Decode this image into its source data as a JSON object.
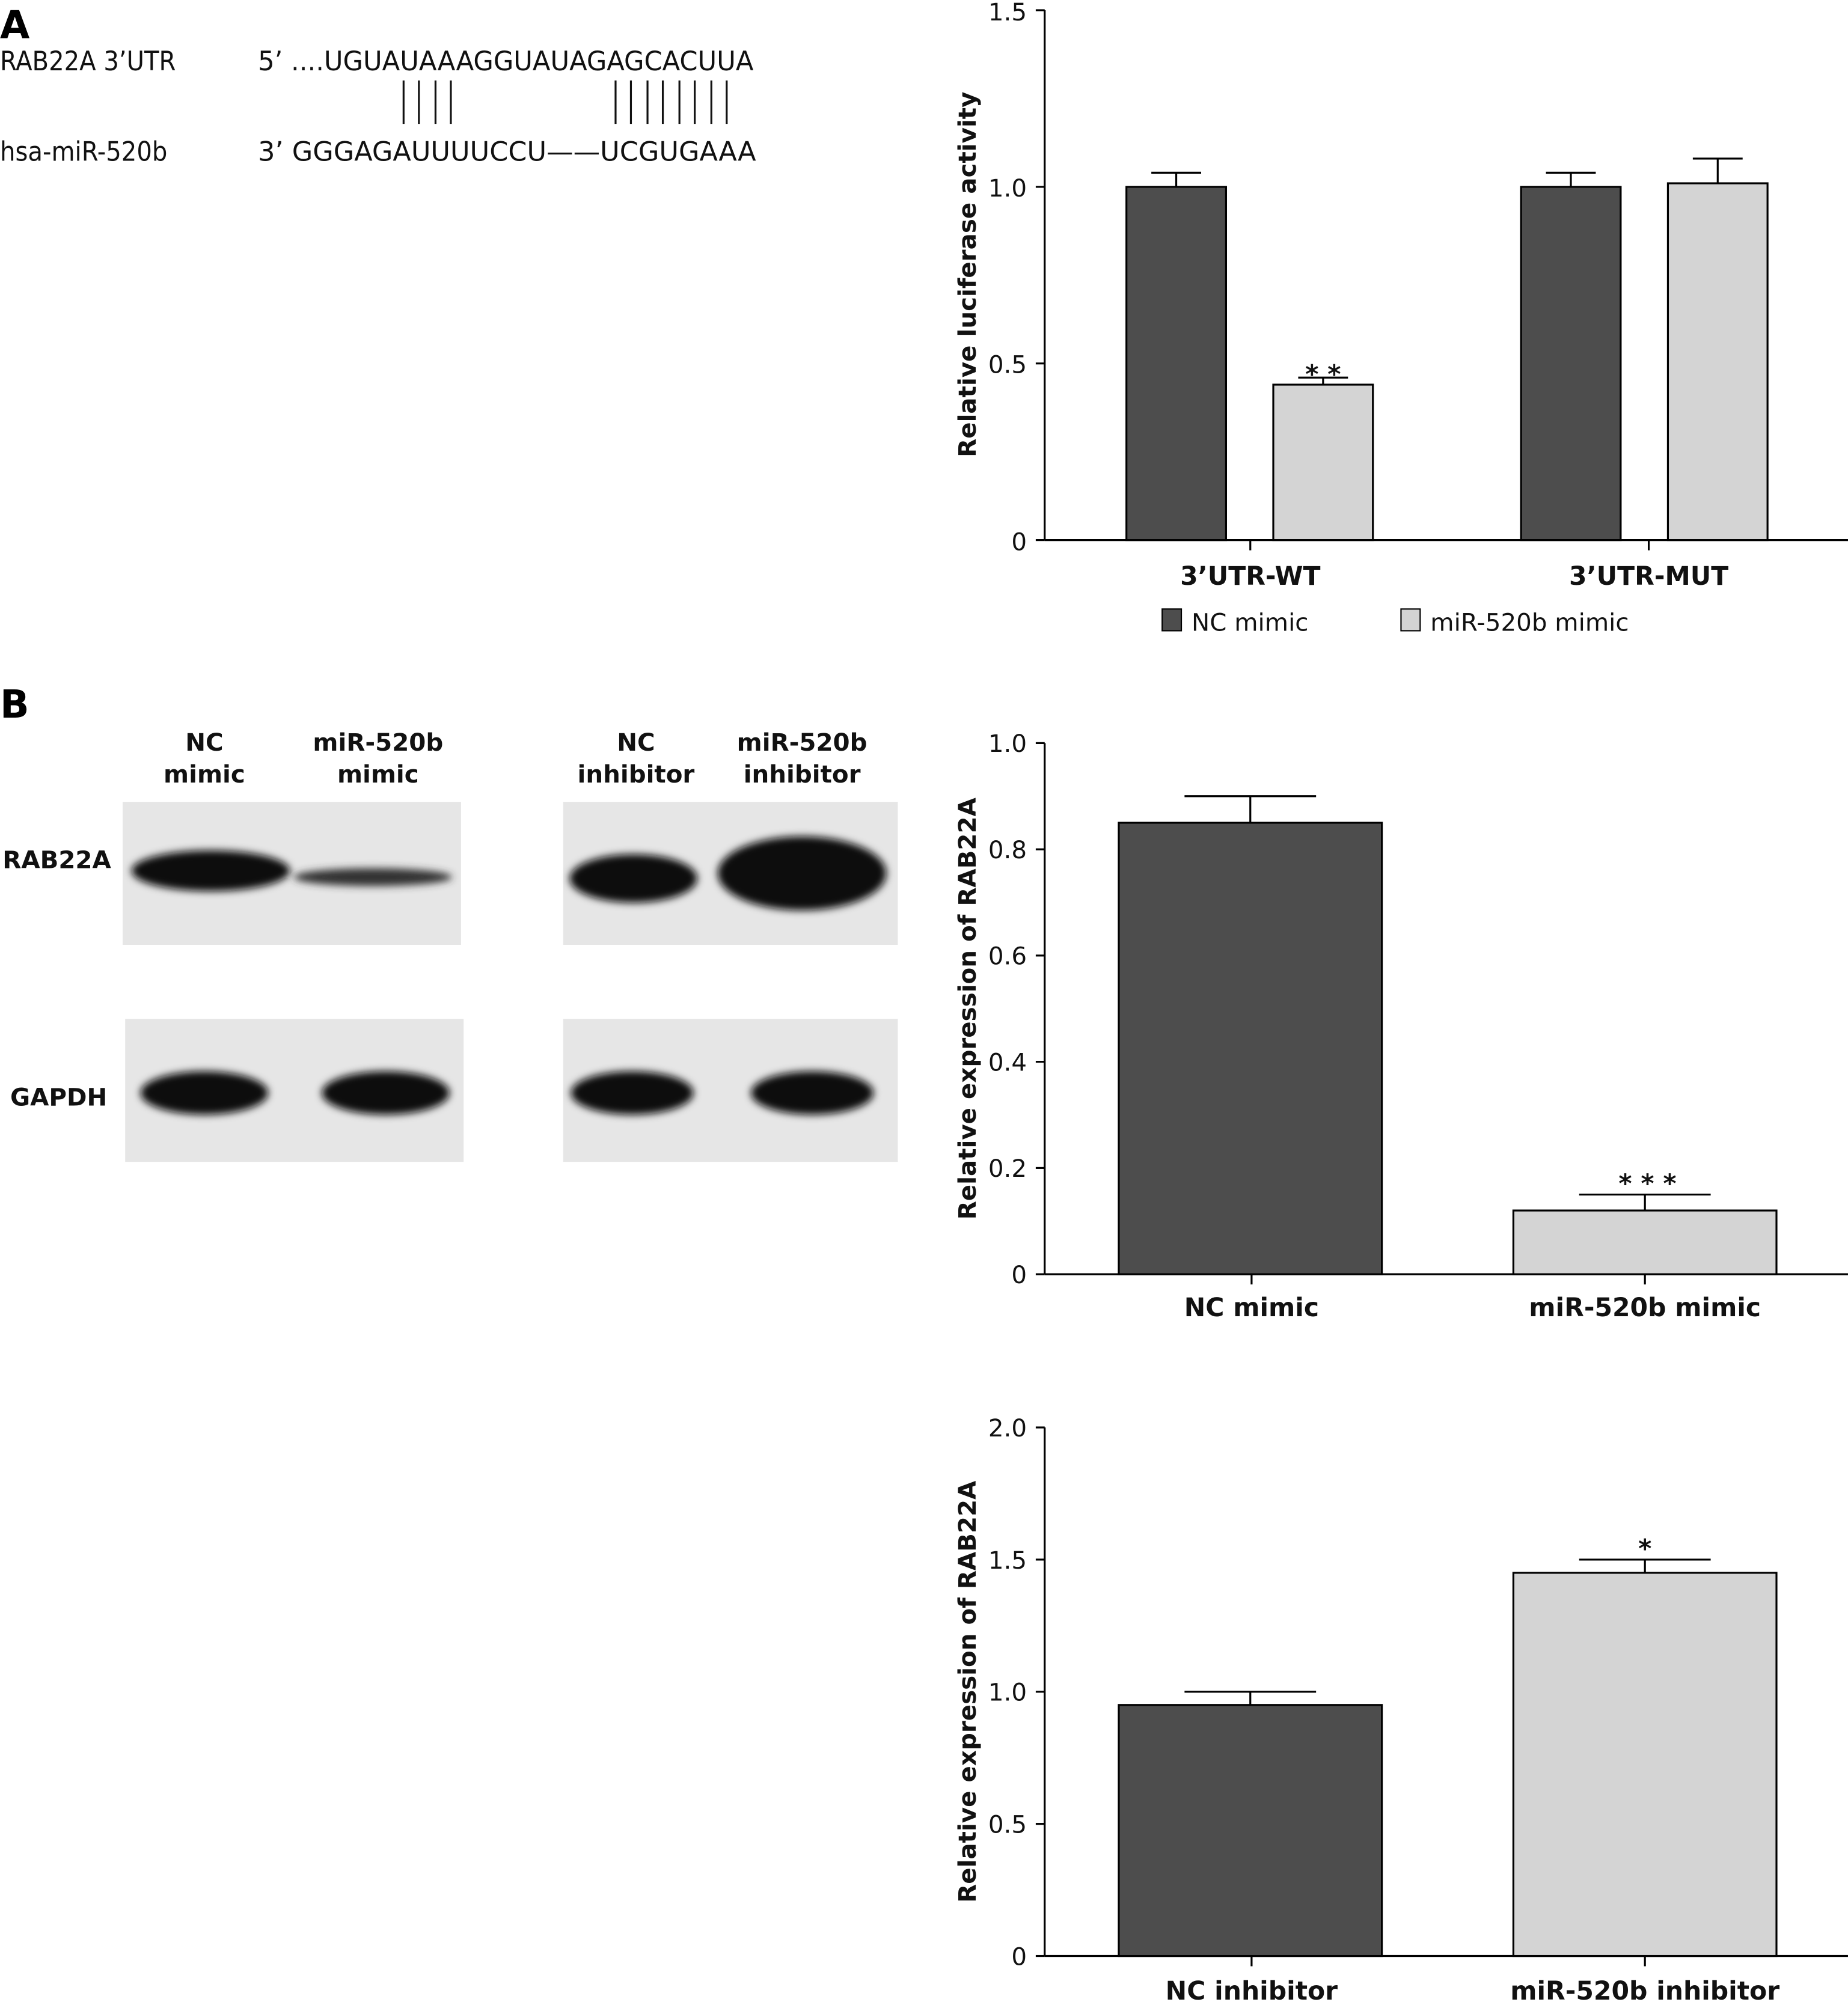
{
  "panels": {
    "a": "A",
    "b": "B"
  },
  "sequence": {
    "utr_label": "RAB22A 3’UTR",
    "utr_seq": "5’ ....UGUAUAAAGGUAUAGAGCACUUA",
    "mir_label": "hsa-miR-520b",
    "mir_seq": "3’ GGGAGAUUUUCCU——UCGUGAAA"
  },
  "blot": {
    "col_labels": [
      [
        "NC",
        "mimic"
      ],
      [
        "miR-520b",
        "mimic"
      ],
      [
        "NC",
        "inhibitor"
      ],
      [
        "miR-520b",
        "inhibitor"
      ]
    ],
    "row_labels": [
      "RAB22A",
      "GAPDH"
    ]
  },
  "colors": {
    "dark": "#4d4d4d",
    "light": "#d4d4d4"
  },
  "chart_data": [
    {
      "type": "bar",
      "title": "",
      "ylabel": "Relative luciferase activity",
      "xlabel": "",
      "ylim": [
        0,
        1.5
      ],
      "yticks": [
        "0",
        "0.5",
        "1.0",
        "1.5"
      ],
      "ytick_values": [
        0,
        0.5,
        1.0,
        1.5
      ],
      "categories": [
        "3’UTR-WT",
        "3’UTR-MUT"
      ],
      "legend": "bottom",
      "series": [
        {
          "name": "NC mimic",
          "values": [
            1.0,
            1.0
          ],
          "errors": [
            0.04,
            0.04
          ]
        },
        {
          "name": "miR-520b mimic",
          "values": [
            0.44,
            1.01
          ],
          "errors": [
            0.02,
            0.07
          ]
        }
      ],
      "annotations": [
        {
          "series": 1,
          "category": 0,
          "text": "* *"
        }
      ]
    },
    {
      "type": "bar",
      "ylabel": "Relative expression of RAB22A",
      "ylim": [
        0,
        1.0
      ],
      "yticks": [
        "0",
        "0.2",
        "0.4",
        "0.6",
        "0.8",
        "1.0"
      ],
      "ytick_values": [
        0,
        0.2,
        0.4,
        0.6,
        0.8,
        1.0
      ],
      "categories": [
        "NC mimic",
        "miR-520b mimic"
      ],
      "values": [
        0.85,
        0.12
      ],
      "errors": [
        0.05,
        0.03
      ],
      "annotations": [
        {
          "category": 1,
          "text": "* * *"
        }
      ]
    },
    {
      "type": "bar",
      "ylabel": "Relative expression of RAB22A",
      "ylim": [
        0,
        2.0
      ],
      "yticks": [
        "0",
        "0.5",
        "1.0",
        "1.5",
        "2.0"
      ],
      "ytick_values": [
        0,
        0.5,
        1.0,
        1.5,
        2.0
      ],
      "categories": [
        "NC inhibitor",
        "miR-520b inhibitor"
      ],
      "values": [
        0.95,
        1.45
      ],
      "errors": [
        0.05,
        0.05
      ],
      "annotations": [
        {
          "category": 1,
          "text": "*"
        }
      ]
    }
  ]
}
